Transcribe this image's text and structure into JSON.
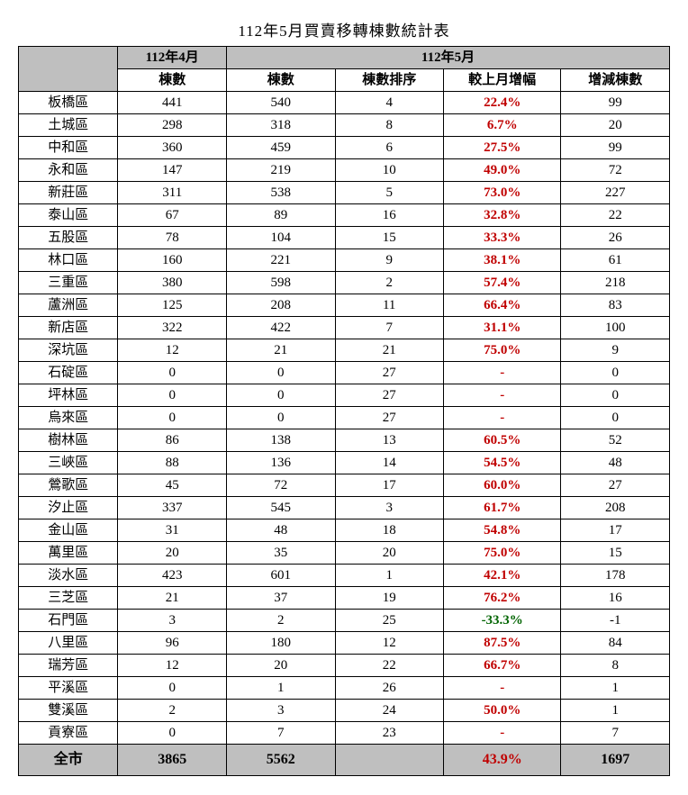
{
  "title": "112年5月買賣移轉棟數統計表",
  "header": {
    "apr_group": "112年4月",
    "may_group": "112年5月",
    "apr_count": "棟數",
    "may_count": "棟數",
    "may_rank": "棟數排序",
    "may_pct": "較上月增幅",
    "may_diff": "增減棟數"
  },
  "rows": [
    {
      "district": "板橋區",
      "apr": "441",
      "may": "540",
      "rank": "4",
      "pct": "22.4%",
      "dir": "up",
      "diff": "99"
    },
    {
      "district": "土城區",
      "apr": "298",
      "may": "318",
      "rank": "8",
      "pct": "6.7%",
      "dir": "up",
      "diff": "20"
    },
    {
      "district": "中和區",
      "apr": "360",
      "may": "459",
      "rank": "6",
      "pct": "27.5%",
      "dir": "up",
      "diff": "99"
    },
    {
      "district": "永和區",
      "apr": "147",
      "may": "219",
      "rank": "10",
      "pct": "49.0%",
      "dir": "up",
      "diff": "72"
    },
    {
      "district": "新莊區",
      "apr": "311",
      "may": "538",
      "rank": "5",
      "pct": "73.0%",
      "dir": "up",
      "diff": "227"
    },
    {
      "district": "泰山區",
      "apr": "67",
      "may": "89",
      "rank": "16",
      "pct": "32.8%",
      "dir": "up",
      "diff": "22"
    },
    {
      "district": "五股區",
      "apr": "78",
      "may": "104",
      "rank": "15",
      "pct": "33.3%",
      "dir": "up",
      "diff": "26"
    },
    {
      "district": "林口區",
      "apr": "160",
      "may": "221",
      "rank": "9",
      "pct": "38.1%",
      "dir": "up",
      "diff": "61"
    },
    {
      "district": "三重區",
      "apr": "380",
      "may": "598",
      "rank": "2",
      "pct": "57.4%",
      "dir": "up",
      "diff": "218"
    },
    {
      "district": "蘆洲區",
      "apr": "125",
      "may": "208",
      "rank": "11",
      "pct": "66.4%",
      "dir": "up",
      "diff": "83"
    },
    {
      "district": "新店區",
      "apr": "322",
      "may": "422",
      "rank": "7",
      "pct": "31.1%",
      "dir": "up",
      "diff": "100"
    },
    {
      "district": "深坑區",
      "apr": "12",
      "may": "21",
      "rank": "21",
      "pct": "75.0%",
      "dir": "up",
      "diff": "9"
    },
    {
      "district": "石碇區",
      "apr": "0",
      "may": "0",
      "rank": "27",
      "pct": "-",
      "dir": "dash",
      "diff": "0"
    },
    {
      "district": "坪林區",
      "apr": "0",
      "may": "0",
      "rank": "27",
      "pct": "-",
      "dir": "dash",
      "diff": "0"
    },
    {
      "district": "烏來區",
      "apr": "0",
      "may": "0",
      "rank": "27",
      "pct": "-",
      "dir": "dash",
      "diff": "0"
    },
    {
      "district": "樹林區",
      "apr": "86",
      "may": "138",
      "rank": "13",
      "pct": "60.5%",
      "dir": "up",
      "diff": "52"
    },
    {
      "district": "三峽區",
      "apr": "88",
      "may": "136",
      "rank": "14",
      "pct": "54.5%",
      "dir": "up",
      "diff": "48"
    },
    {
      "district": "鶯歌區",
      "apr": "45",
      "may": "72",
      "rank": "17",
      "pct": "60.0%",
      "dir": "up",
      "diff": "27"
    },
    {
      "district": "汐止區",
      "apr": "337",
      "may": "545",
      "rank": "3",
      "pct": "61.7%",
      "dir": "up",
      "diff": "208"
    },
    {
      "district": "金山區",
      "apr": "31",
      "may": "48",
      "rank": "18",
      "pct": "54.8%",
      "dir": "up",
      "diff": "17"
    },
    {
      "district": "萬里區",
      "apr": "20",
      "may": "35",
      "rank": "20",
      "pct": "75.0%",
      "dir": "up",
      "diff": "15"
    },
    {
      "district": "淡水區",
      "apr": "423",
      "may": "601",
      "rank": "1",
      "pct": "42.1%",
      "dir": "up",
      "diff": "178"
    },
    {
      "district": "三芝區",
      "apr": "21",
      "may": "37",
      "rank": "19",
      "pct": "76.2%",
      "dir": "up",
      "diff": "16"
    },
    {
      "district": "石門區",
      "apr": "3",
      "may": "2",
      "rank": "25",
      "pct": "-33.3%",
      "dir": "down",
      "diff": "-1"
    },
    {
      "district": "八里區",
      "apr": "96",
      "may": "180",
      "rank": "12",
      "pct": "87.5%",
      "dir": "up",
      "diff": "84"
    },
    {
      "district": "瑞芳區",
      "apr": "12",
      "may": "20",
      "rank": "22",
      "pct": "66.7%",
      "dir": "up",
      "diff": "8"
    },
    {
      "district": "平溪區",
      "apr": "0",
      "may": "1",
      "rank": "26",
      "pct": "-",
      "dir": "dash",
      "diff": "1"
    },
    {
      "district": "雙溪區",
      "apr": "2",
      "may": "3",
      "rank": "24",
      "pct": "50.0%",
      "dir": "up",
      "diff": "1"
    },
    {
      "district": "貢寮區",
      "apr": "0",
      "may": "7",
      "rank": "23",
      "pct": "-",
      "dir": "dash",
      "diff": "7"
    }
  ],
  "total": {
    "district": "全市",
    "apr": "3865",
    "may": "5562",
    "rank": "",
    "pct": "43.9%",
    "dir": "up",
    "diff": "1697"
  },
  "colors": {
    "header_bg": "#bfbfbf",
    "up": "#c00000",
    "down": "#006400",
    "border": "#000000",
    "bg": "#ffffff"
  }
}
